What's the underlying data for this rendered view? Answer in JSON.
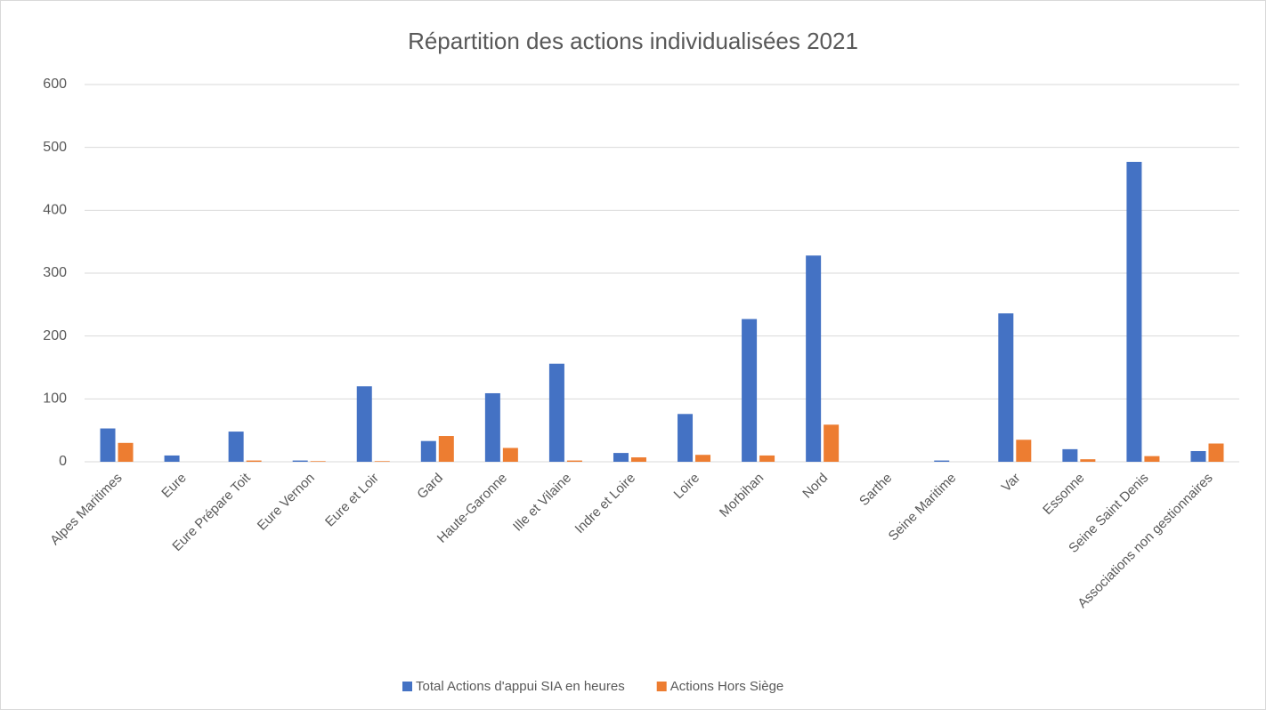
{
  "chart_data": {
    "type": "bar",
    "title": "Répartition des actions individualisées 2021",
    "categories": [
      "Alpes Maritimes",
      "Eure",
      "Eure Prépare Toit",
      "Eure Vernon",
      "Eure et Loir",
      "Gard",
      "Haute-Garonne",
      "Ille et Vilaine",
      "Indre et Loire",
      "Loire",
      "Morbihan",
      "Nord",
      "Sarthe",
      "Seine Maritime",
      "Var",
      "Essonne",
      "Seine Saint Denis",
      "Associations non gestionnaires"
    ],
    "series": [
      {
        "name": "Total Actions d'appui SIA en heures",
        "color": "#4472c4",
        "values": [
          53,
          10,
          48,
          2,
          120,
          33,
          109,
          156,
          14,
          76,
          227,
          328,
          0,
          2,
          236,
          20,
          477,
          17
        ]
      },
      {
        "name": "Actions Hors Siège",
        "color": "#ed7d31",
        "values": [
          30,
          0,
          2,
          1,
          1,
          41,
          22,
          2,
          7,
          11,
          10,
          59,
          0,
          0,
          35,
          4,
          9,
          29
        ]
      }
    ],
    "ylim": [
      0,
      600
    ],
    "yticks": [
      0,
      100,
      200,
      300,
      400,
      500,
      600
    ],
    "grid": true,
    "legend": "bottom"
  }
}
